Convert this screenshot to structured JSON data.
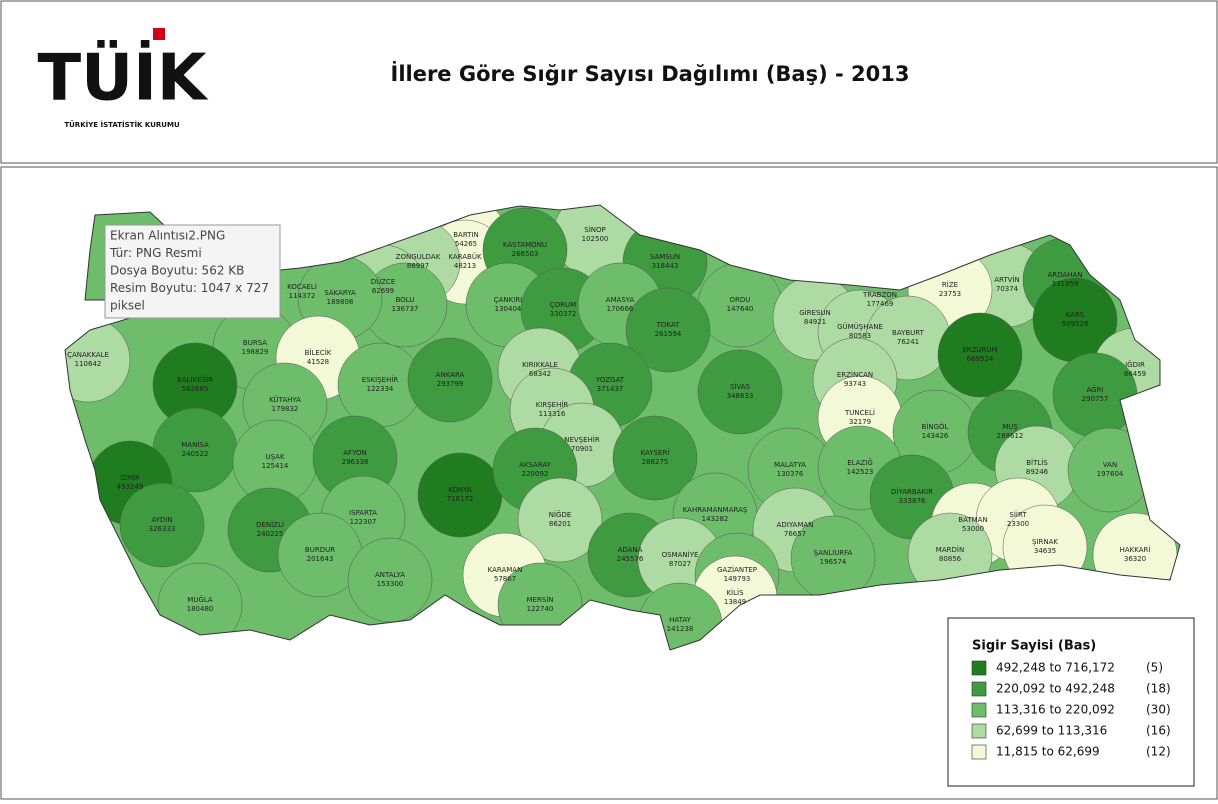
{
  "header": {
    "logo": "TÜİK",
    "logo_subtitle": "TÜRKİYE İSTATİSTİK KURUMU",
    "title": "İllere Göre Sığır Sayısı Dağılımı (Baş) - 2013"
  },
  "tooltip": [
    "Ekran Alıntısı2.PNG",
    "Tür: PNG Resmi",
    "Dosya Boyutu: 562 KB",
    "Resim Boyutu: 1047 x 727",
    "piksel"
  ],
  "legend": {
    "title": "Sigir Sayisi (Bas)",
    "items": [
      {
        "label": "492,248 to 716,172",
        "count": "(5)",
        "color": "#1f7d1f"
      },
      {
        "label": "220,092 to 492,248",
        "count": "(18)",
        "color": "#3f9b3f"
      },
      {
        "label": "113,316 to 220,092",
        "count": "(30)",
        "color": "#6dbd6b"
      },
      {
        "label": "62,699 to 113,316",
        "count": "(16)",
        "color": "#aedaa3"
      },
      {
        "label": "11,815 to  62,699",
        "count": "(12)",
        "color": "#f3f9d6"
      }
    ]
  },
  "provinces": [
    {
      "name": "BARTIN",
      "value": 54265,
      "color": "#f3f9d6"
    },
    {
      "name": "KARABÜK",
      "value": 48213,
      "color": "#f3f9d6"
    },
    {
      "name": "SİNOP",
      "value": 102500,
      "color": "#aedaa3"
    },
    {
      "name": "KASTAMONU",
      "value": 266503,
      "color": "#3f9b3f"
    },
    {
      "name": "SAMSUN",
      "value": 318443,
      "color": "#3f9b3f"
    },
    {
      "name": "ZONGULDAK",
      "value": 86997,
      "color": "#aedaa3"
    },
    {
      "name": "DÜZCE",
      "value": 62699,
      "color": "#aedaa3"
    },
    {
      "name": "BOLU",
      "value": 136737,
      "color": "#6dbd6b"
    },
    {
      "name": "KOCAELİ",
      "value": 114372,
      "color": "#6dbd6b"
    },
    {
      "name": "SAKARYA",
      "value": 189808,
      "color": "#6dbd6b"
    },
    {
      "name": "ÇANKIRI",
      "value": 130404,
      "color": "#6dbd6b"
    },
    {
      "name": "ÇORUM",
      "value": 330372,
      "color": "#3f9b3f"
    },
    {
      "name": "AMASYA",
      "value": 170666,
      "color": "#6dbd6b"
    },
    {
      "name": "ORDU",
      "value": 147640,
      "color": "#6dbd6b"
    },
    {
      "name": "TRABZON",
      "value": 177469,
      "color": "#6dbd6b"
    },
    {
      "name": "ARTVİN",
      "value": 70374,
      "color": "#aedaa3"
    },
    {
      "name": "ARDAHAN",
      "value": 331959,
      "color": "#3f9b3f"
    },
    {
      "name": "RİZE",
      "value": 23753,
      "color": "#f3f9d6"
    },
    {
      "name": "KARS",
      "value": 509528,
      "color": "#1f7d1f"
    },
    {
      "name": "GİRESUN",
      "value": 84921,
      "color": "#aedaa3"
    },
    {
      "name": "GÜMÜŞHANE",
      "value": 80583,
      "color": "#aedaa3"
    },
    {
      "name": "BAYBURT",
      "value": 76241,
      "color": "#aedaa3"
    },
    {
      "name": "TOKAT",
      "value": 261594,
      "color": "#3f9b3f"
    },
    {
      "name": "BURSA",
      "value": 198829,
      "color": "#6dbd6b"
    },
    {
      "name": "BİLECİK",
      "value": 41528,
      "color": "#f3f9d6"
    },
    {
      "name": "ÇANAKKALE",
      "value": 110642,
      "color": "#aedaa3"
    },
    {
      "name": "BALIKESİR",
      "value": 562685,
      "color": "#1f7d1f"
    },
    {
      "name": "KIRIKKALE",
      "value": 68342,
      "color": "#aedaa3"
    },
    {
      "name": "IĞDIR",
      "value": 86459,
      "color": "#aedaa3"
    },
    {
      "name": "ERZURUM",
      "value": 669524,
      "color": "#1f7d1f"
    },
    {
      "name": "YOZGAT",
      "value": 371437,
      "color": "#3f9b3f"
    },
    {
      "name": "ESKİŞEHİR",
      "value": 122334,
      "color": "#6dbd6b"
    },
    {
      "name": "ANKARA",
      "value": 293799,
      "color": "#3f9b3f"
    },
    {
      "name": "KÜTAHYA",
      "value": 179832,
      "color": "#6dbd6b"
    },
    {
      "name": "SİVAS",
      "value": 348633,
      "color": "#3f9b3f"
    },
    {
      "name": "KIRŞEHİR",
      "value": 113316,
      "color": "#aedaa3"
    },
    {
      "name": "ERZİNCAN",
      "value": 93743,
      "color": "#aedaa3"
    },
    {
      "name": "AĞRI",
      "value": 290757,
      "color": "#3f9b3f"
    },
    {
      "name": "TUNCELİ",
      "value": 32179,
      "color": "#f3f9d6"
    },
    {
      "name": "BİNGÖL",
      "value": 143426,
      "color": "#6dbd6b"
    },
    {
      "name": "MUŞ",
      "value": 288612,
      "color": "#3f9b3f"
    },
    {
      "name": "NEVŞEHİR",
      "value": 70901,
      "color": "#aedaa3"
    },
    {
      "name": "KAYSERİ",
      "value": 286275,
      "color": "#3f9b3f"
    },
    {
      "name": "MANİSA",
      "value": 240522,
      "color": "#3f9b3f"
    },
    {
      "name": "UŞAK",
      "value": 125414,
      "color": "#6dbd6b"
    },
    {
      "name": "AFYON",
      "value": 296338,
      "color": "#3f9b3f"
    },
    {
      "name": "KONYA",
      "value": 716172,
      "color": "#1f7d1f"
    },
    {
      "name": "AKSARAY",
      "value": 220092,
      "color": "#3f9b3f"
    },
    {
      "name": "MALATYA",
      "value": 130376,
      "color": "#6dbd6b"
    },
    {
      "name": "ELAZIĞ",
      "value": 142523,
      "color": "#6dbd6b"
    },
    {
      "name": "BİTLİS",
      "value": 89246,
      "color": "#aedaa3"
    },
    {
      "name": "VAN",
      "value": 197604,
      "color": "#6dbd6b"
    },
    {
      "name": "İZMİR",
      "value": 493249,
      "color": "#1f7d1f"
    },
    {
      "name": "DİYARBAKIR",
      "value": 333876,
      "color": "#3f9b3f"
    },
    {
      "name": "BATMAN",
      "value": 53000,
      "color": "#f3f9d6"
    },
    {
      "name": "SİİRT",
      "value": 23300,
      "color": "#f3f9d6"
    },
    {
      "name": "AYDIN",
      "value": 326333,
      "color": "#3f9b3f"
    },
    {
      "name": "DENİZLİ",
      "value": 240225,
      "color": "#3f9b3f"
    },
    {
      "name": "ISPARTA",
      "value": 122307,
      "color": "#6dbd6b"
    },
    {
      "name": "KAHRAMANMARAŞ",
      "value": 143282,
      "color": "#6dbd6b"
    },
    {
      "name": "ADIYAMAN",
      "value": 76657,
      "color": "#aedaa3"
    },
    {
      "name": "NİĞDE",
      "value": 86201,
      "color": "#aedaa3"
    },
    {
      "name": "BURDUR",
      "value": 201643,
      "color": "#6dbd6b"
    },
    {
      "name": "ŞIRNAK",
      "value": 34635,
      "color": "#f3f9d6"
    },
    {
      "name": "HAKKARİ",
      "value": 36320,
      "color": "#f3f9d6"
    },
    {
      "name": "ADANA",
      "value": 245576,
      "color": "#3f9b3f"
    },
    {
      "name": "OSMANİYE",
      "value": 87027,
      "color": "#aedaa3"
    },
    {
      "name": "ŞANLIURFA",
      "value": 196574,
      "color": "#6dbd6b"
    },
    {
      "name": "MARDİN",
      "value": 80856,
      "color": "#aedaa3"
    },
    {
      "name": "GAZİANTEP",
      "value": 149793,
      "color": "#6dbd6b"
    },
    {
      "name": "KARAMAN",
      "value": 57867,
      "color": "#f3f9d6"
    },
    {
      "name": "KİLİS",
      "value": 13849,
      "color": "#f3f9d6"
    },
    {
      "name": "MUĞLA",
      "value": 180480,
      "color": "#6dbd6b"
    },
    {
      "name": "ANTALYA",
      "value": 153300,
      "color": "#6dbd6b"
    },
    {
      "name": "MERSİN",
      "value": 122740,
      "color": "#6dbd6b"
    },
    {
      "name": "HATAY",
      "value": 141238,
      "color": "#6dbd6b"
    }
  ]
}
